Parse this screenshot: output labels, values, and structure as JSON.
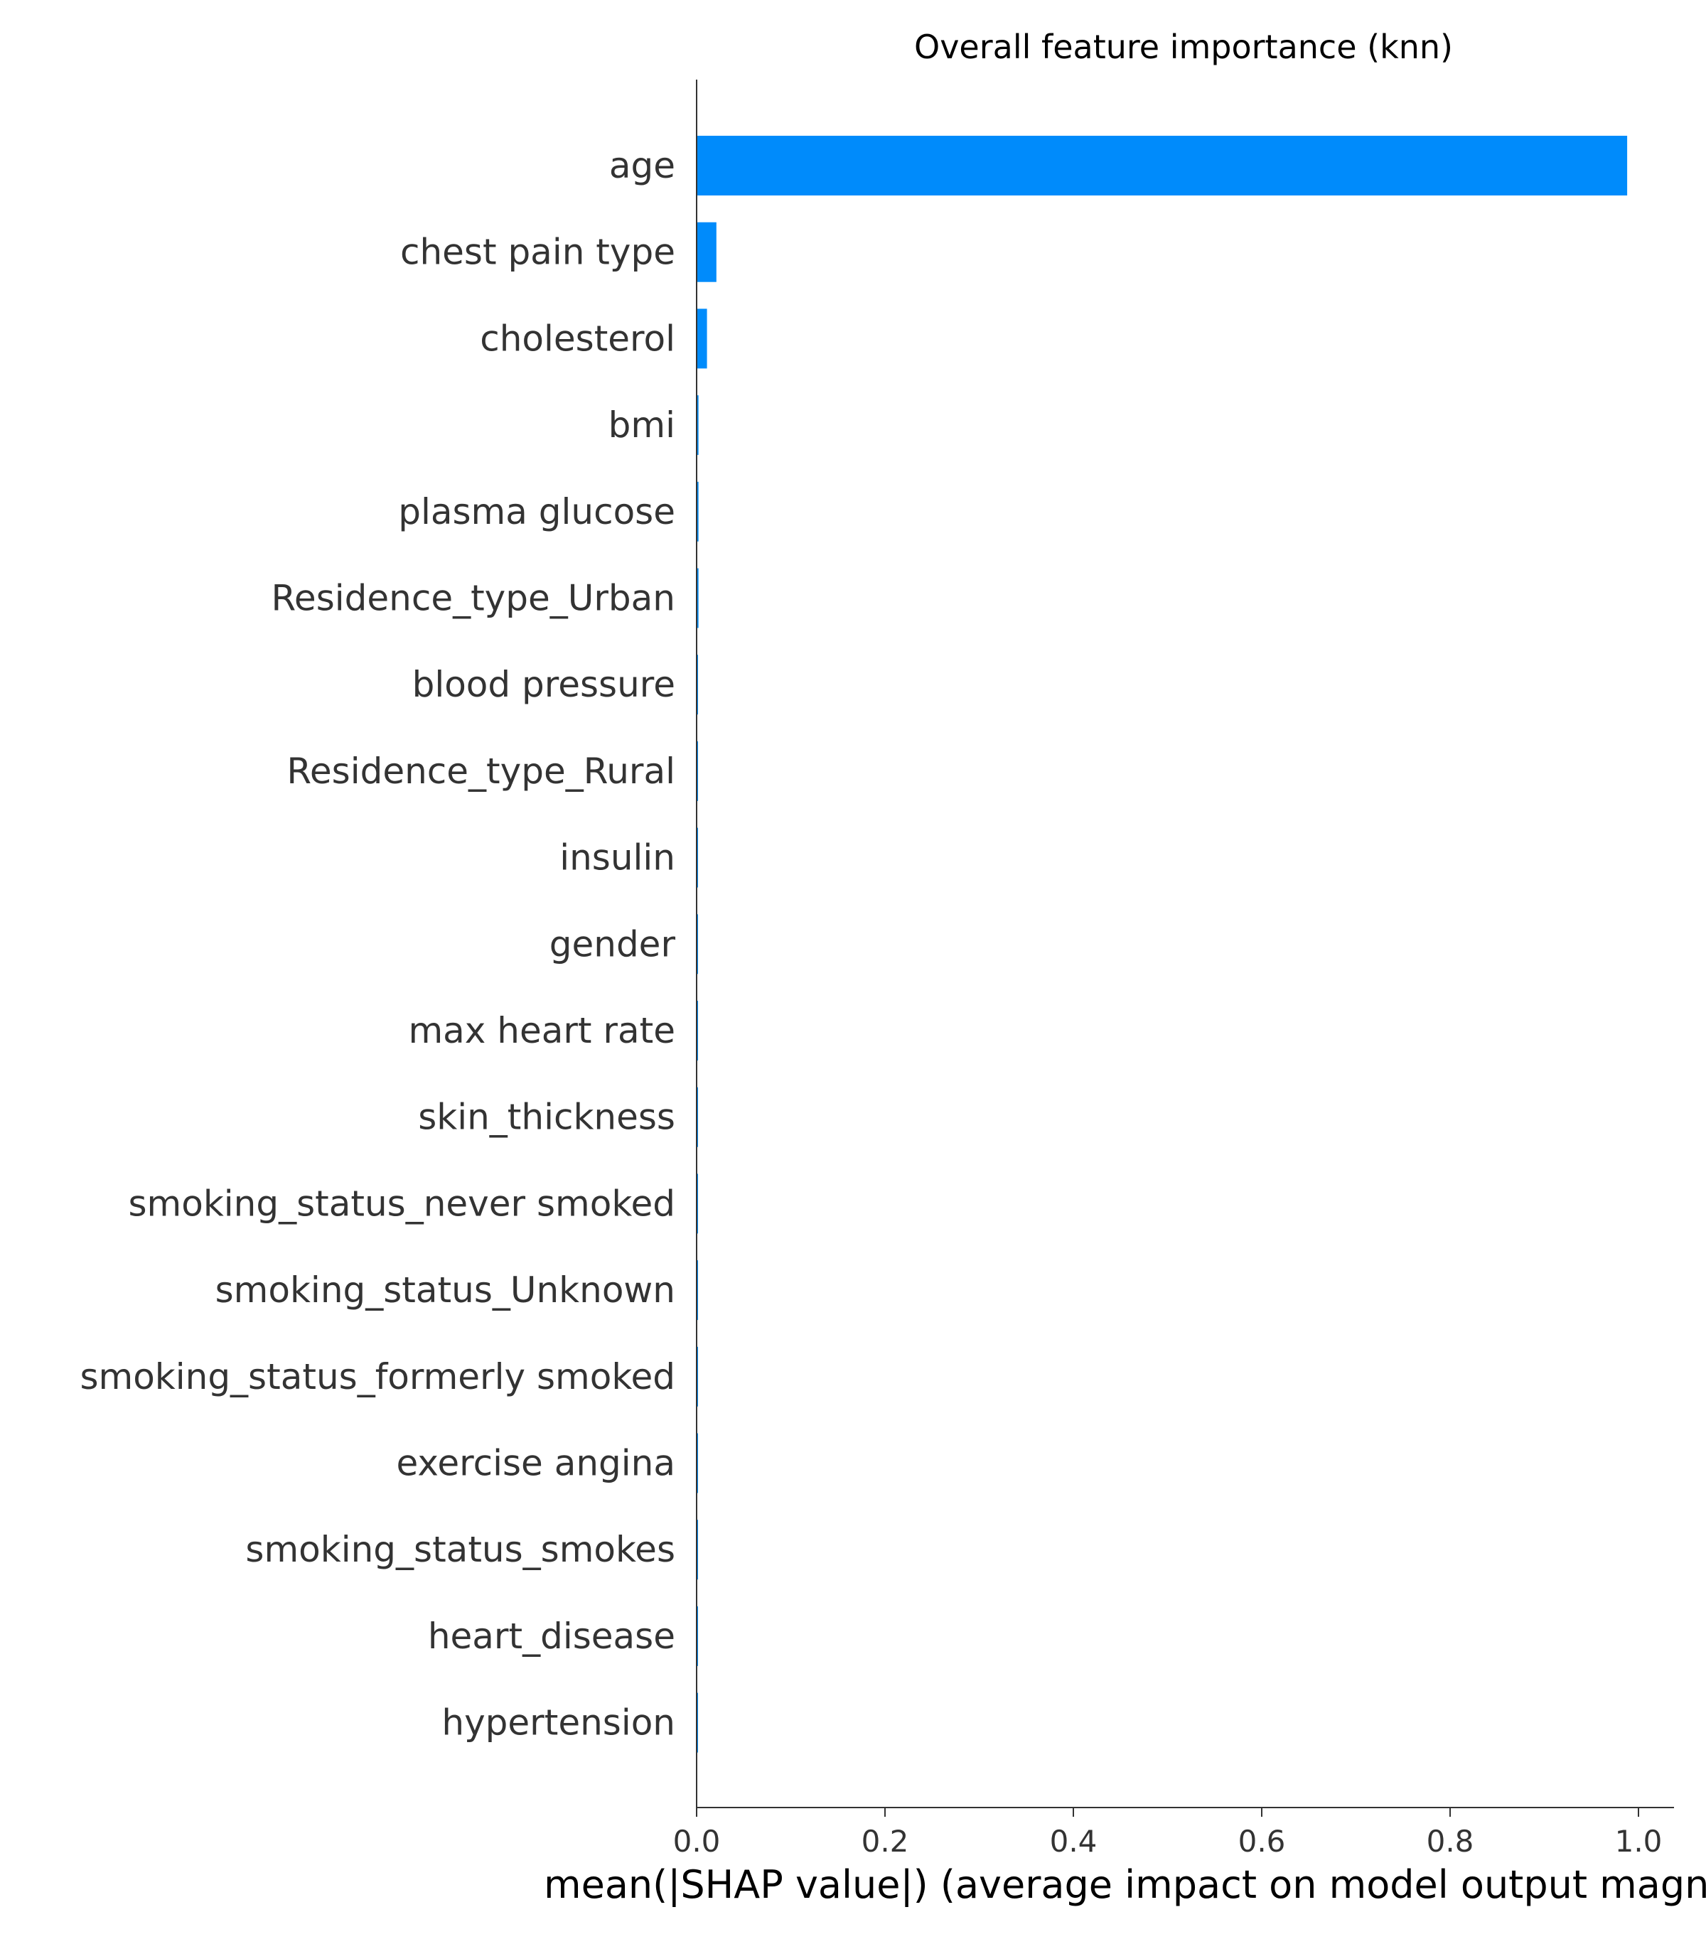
{
  "chart_data": {
    "type": "bar",
    "orientation": "horizontal",
    "title": "Overall feature importance (knn)",
    "xlabel": "mean(|SHAP value|) (average impact on model output magn",
    "ylabel": "",
    "xlim": [
      0.0,
      1.04
    ],
    "xticks": [
      "0.0",
      "0.2",
      "0.4",
      "0.6",
      "0.8",
      "1.0"
    ],
    "bar_color": "#008bfb",
    "grid": false,
    "categories": [
      "age",
      "chest pain type",
      "cholesterol",
      "bmi",
      "plasma glucose",
      "Residence_type_Urban",
      "blood pressure",
      "Residence_type_Rural",
      "insulin",
      "gender",
      "max heart rate",
      "skin_thickness",
      "smoking_status_never smoked",
      "smoking_status_Unknown",
      "smoking_status_formerly smoked",
      "exercise angina",
      "smoking_status_smokes",
      "heart_disease",
      "hypertension"
    ],
    "values": [
      0.988,
      0.021,
      0.011,
      0.002,
      0.002,
      0.002,
      0.001,
      0.001,
      0.001,
      0.001,
      0.001,
      0.001,
      0.0008,
      0.0008,
      0.0007,
      0.0007,
      0.0006,
      0.0005,
      0.0005
    ]
  }
}
